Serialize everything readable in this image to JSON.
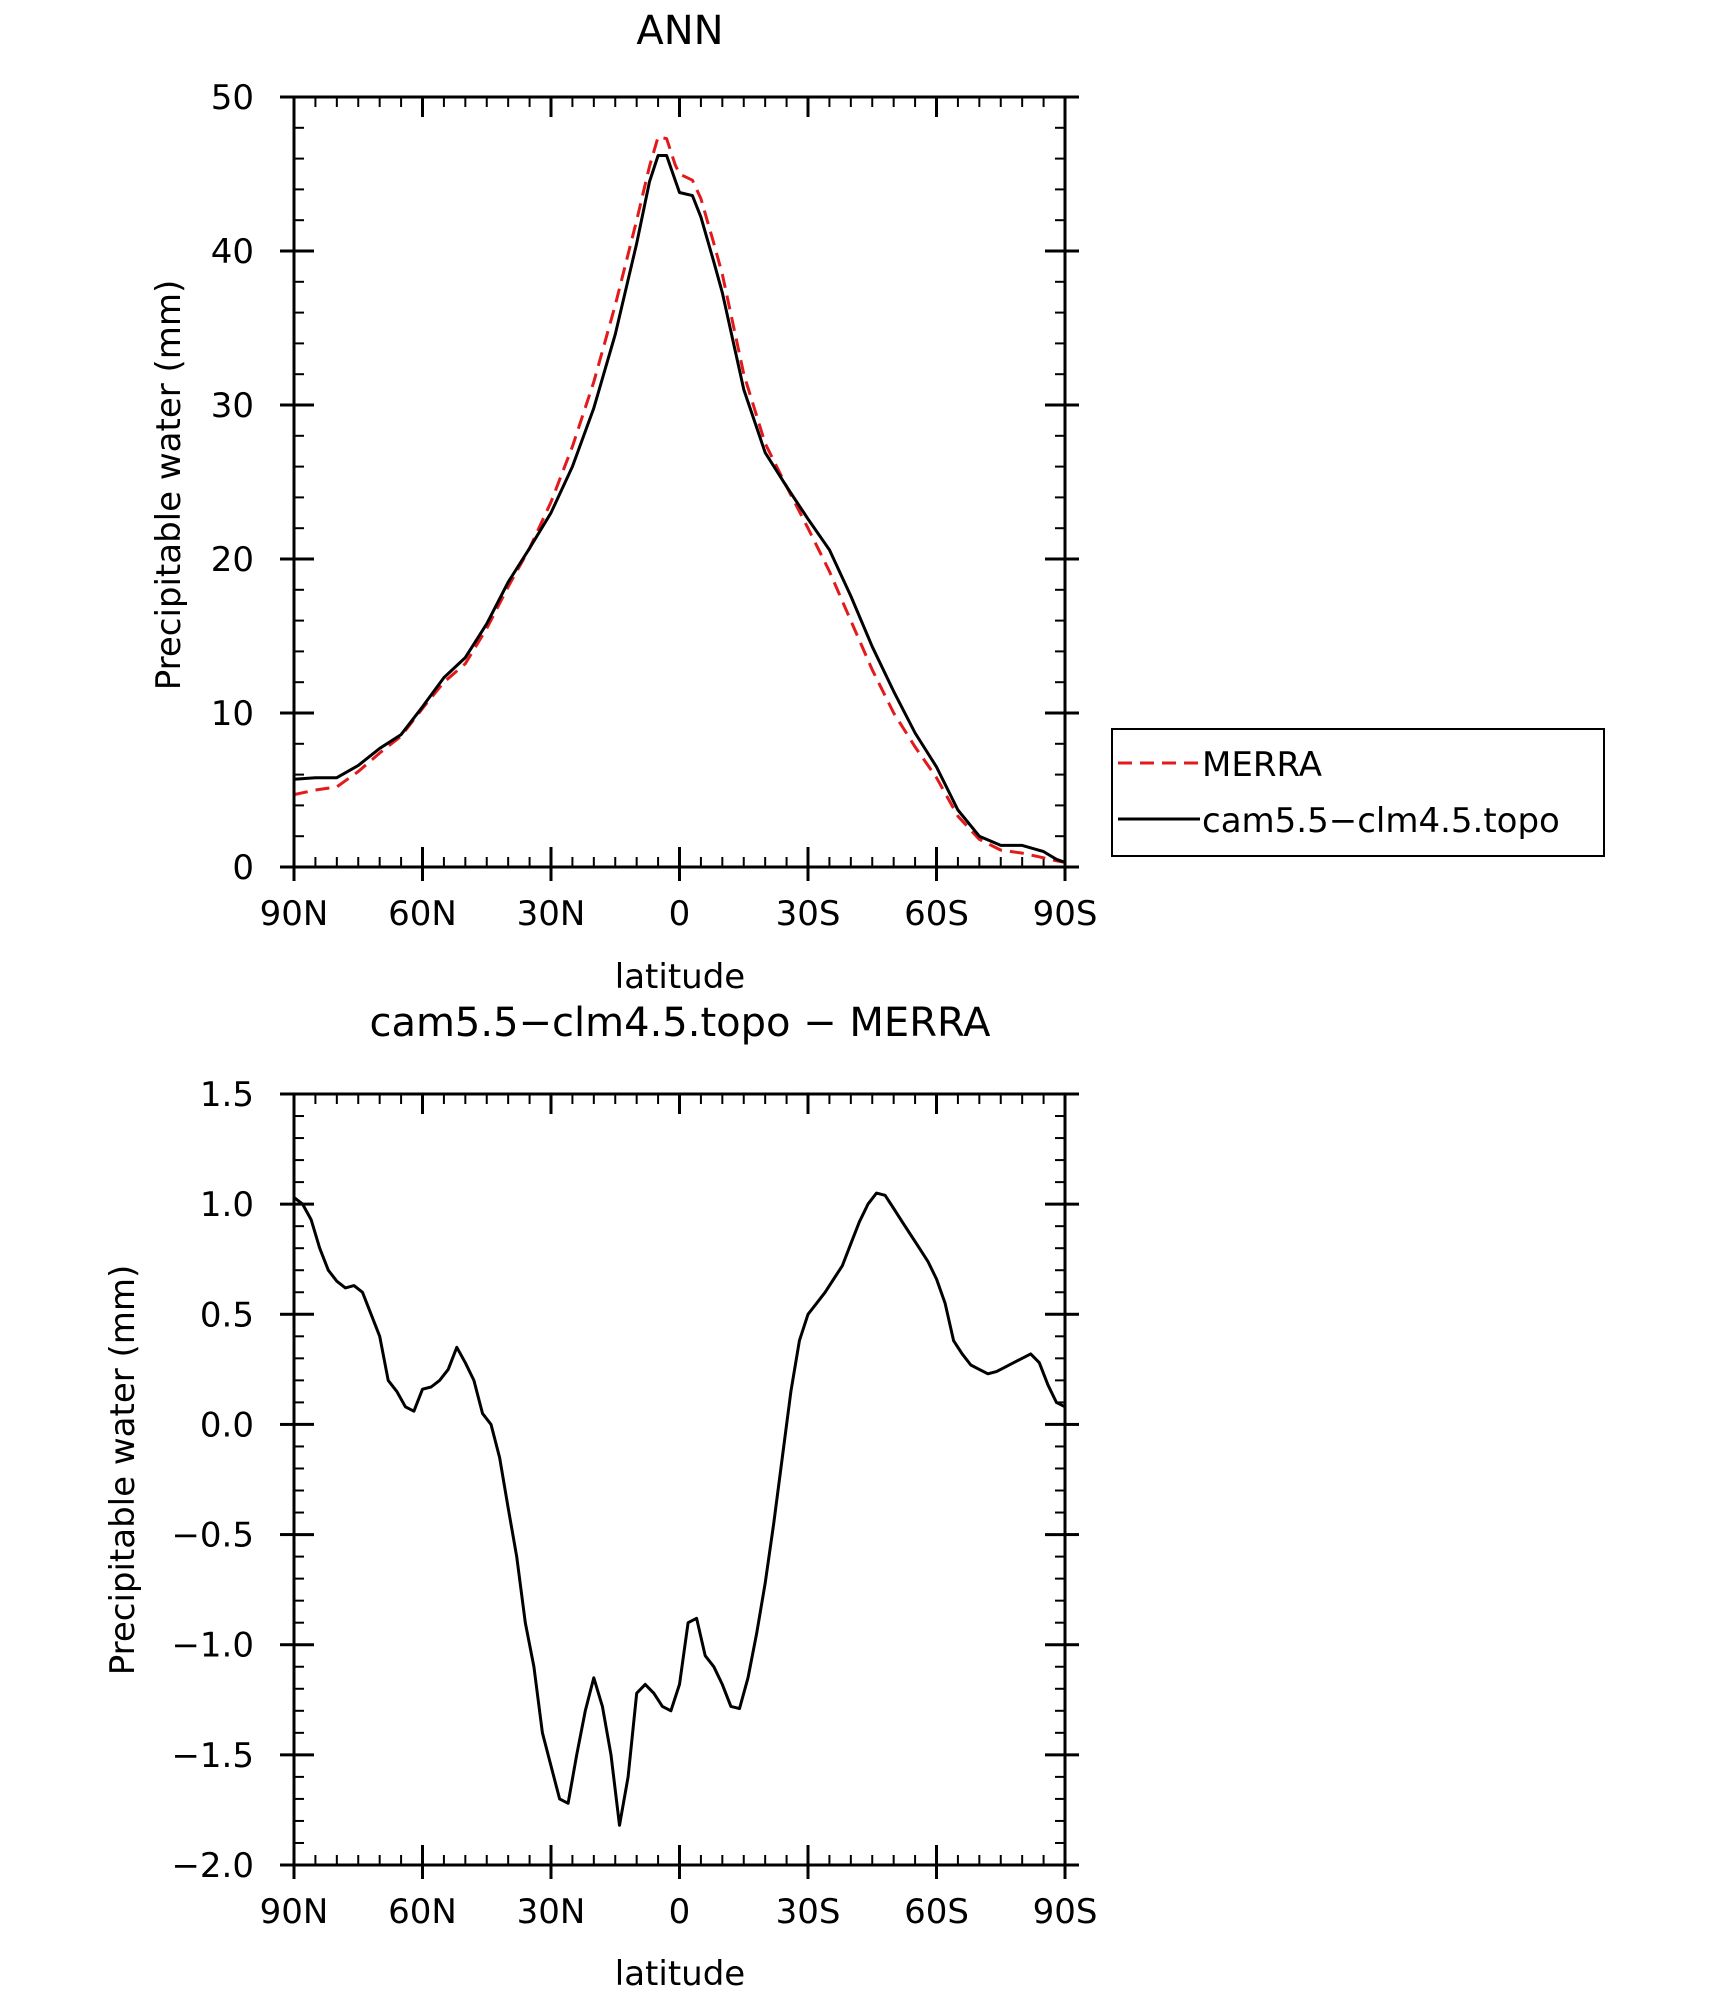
{
  "chart_data": [
    {
      "type": "line",
      "title": "ANN",
      "xlabel": "latitude",
      "ylabel": "Precipitable water (mm)",
      "xlim": [
        -90,
        90
      ],
      "ylim": [
        0,
        50
      ],
      "x_ticks": [
        -90,
        -60,
        -30,
        0,
        30,
        60,
        90
      ],
      "x_tick_labels": [
        "90N",
        "60N",
        "30N",
        "0",
        "30S",
        "60S",
        "90S"
      ],
      "y_ticks": [
        0,
        10,
        20,
        30,
        40,
        50
      ],
      "y_tick_labels": [
        "0",
        "10",
        "20",
        "30",
        "40",
        "50"
      ],
      "grid": false,
      "legend": {
        "placement": "right"
      },
      "series": [
        {
          "name": "MERRA",
          "color": "#e31a1c",
          "dash": "dashed",
          "x": [
            -90,
            -85,
            -80,
            -75,
            -70,
            -65,
            -60,
            -55,
            -50,
            -45,
            -40,
            -35,
            -30,
            -25,
            -20,
            -15,
            -10,
            -7,
            -5,
            -3,
            -1,
            0,
            3,
            5,
            8,
            10,
            15,
            20,
            25,
            30,
            35,
            40,
            45,
            50,
            55,
            60,
            65,
            70,
            75,
            80,
            85,
            88,
            90
          ],
          "y": [
            4.7,
            5.0,
            5.2,
            6.2,
            7.4,
            8.5,
            10.3,
            12.0,
            13.2,
            15.5,
            18.2,
            20.7,
            23.7,
            27.3,
            31.5,
            36.5,
            42.0,
            45.5,
            47.4,
            47.3,
            45.6,
            45.0,
            44.6,
            43.4,
            40.5,
            38.5,
            32.0,
            27.5,
            24.7,
            22.0,
            19.2,
            16.0,
            12.8,
            10.0,
            7.8,
            5.8,
            3.3,
            1.8,
            1.1,
            0.9,
            0.6,
            0.4,
            0.3
          ]
        },
        {
          "name": "cam5.5−clm4.5.topo",
          "color": "#000000",
          "dash": "solid",
          "x": [
            -90,
            -85,
            -80,
            -75,
            -70,
            -65,
            -60,
            -55,
            -50,
            -45,
            -40,
            -35,
            -30,
            -25,
            -20,
            -15,
            -10,
            -7,
            -5,
            -3,
            -1,
            0,
            3,
            5,
            8,
            10,
            15,
            20,
            25,
            30,
            35,
            40,
            45,
            50,
            55,
            60,
            65,
            70,
            75,
            80,
            85,
            88,
            90
          ],
          "y": [
            5.7,
            5.8,
            5.8,
            6.6,
            7.7,
            8.6,
            10.4,
            12.3,
            13.6,
            15.8,
            18.5,
            20.7,
            23.0,
            26.0,
            29.8,
            34.6,
            40.5,
            44.5,
            46.2,
            46.2,
            44.6,
            43.8,
            43.6,
            42.2,
            39.3,
            37.3,
            31.0,
            26.9,
            24.7,
            22.6,
            20.6,
            17.6,
            14.3,
            11.4,
            8.7,
            6.5,
            3.7,
            2.0,
            1.4,
            1.4,
            1.0,
            0.5,
            0.3
          ]
        }
      ]
    },
    {
      "type": "line",
      "title": "cam5.5−clm4.5.topo − MERRA",
      "xlabel": "latitude",
      "ylabel": "Precipitable water (mm)",
      "xlim": [
        -90,
        90
      ],
      "ylim": [
        -2.0,
        1.5
      ],
      "x_ticks": [
        -90,
        -60,
        -30,
        0,
        30,
        60,
        90
      ],
      "x_tick_labels": [
        "90N",
        "60N",
        "30N",
        "0",
        "30S",
        "60S",
        "90S"
      ],
      "y_ticks": [
        -2.0,
        -1.5,
        -1.0,
        -0.5,
        0.0,
        0.5,
        1.0,
        1.5
      ],
      "y_tick_labels": [
        "−2.0",
        "−1.5",
        "−1.0",
        "−0.5",
        "0.0",
        "0.5",
        "1.0",
        "1.5"
      ],
      "grid": false,
      "series": [
        {
          "color": "#000000",
          "dash": "solid",
          "x": [
            -90,
            -88,
            -86,
            -84,
            -82,
            -80,
            -78,
            -76,
            -74,
            -72,
            -70,
            -68,
            -66,
            -64,
            -62,
            -60,
            -58,
            -56,
            -54,
            -52,
            -50,
            -48,
            -46,
            -44,
            -42,
            -40,
            -38,
            -36,
            -34,
            -32,
            -30,
            -28,
            -26,
            -24,
            -22,
            -20,
            -18,
            -16,
            -14,
            -12,
            -10,
            -8,
            -6,
            -4,
            -2,
            0,
            2,
            4,
            6,
            8,
            10,
            12,
            14,
            16,
            18,
            20,
            22,
            24,
            26,
            28,
            30,
            32,
            34,
            36,
            38,
            40,
            42,
            44,
            46,
            48,
            50,
            52,
            54,
            56,
            58,
            60,
            62,
            64,
            66,
            68,
            70,
            72,
            74,
            76,
            78,
            80,
            82,
            84,
            86,
            88,
            90
          ],
          "y": [
            1.03,
            1.0,
            0.93,
            0.8,
            0.7,
            0.65,
            0.62,
            0.63,
            0.6,
            0.5,
            0.4,
            0.2,
            0.15,
            0.08,
            0.06,
            0.16,
            0.17,
            0.2,
            0.25,
            0.35,
            0.28,
            0.2,
            0.05,
            0.0,
            -0.15,
            -0.38,
            -0.6,
            -0.9,
            -1.1,
            -1.4,
            -1.55,
            -1.7,
            -1.72,
            -1.5,
            -1.3,
            -1.15,
            -1.28,
            -1.5,
            -1.82,
            -1.6,
            -1.22,
            -1.18,
            -1.22,
            -1.28,
            -1.3,
            -1.18,
            -0.9,
            -0.88,
            -1.05,
            -1.1,
            -1.18,
            -1.28,
            -1.29,
            -1.15,
            -0.95,
            -0.72,
            -0.45,
            -0.15,
            0.15,
            0.38,
            0.5,
            0.55,
            0.6,
            0.66,
            0.72,
            0.82,
            0.92,
            1.0,
            1.05,
            1.04,
            0.98,
            0.92,
            0.86,
            0.8,
            0.74,
            0.66,
            0.55,
            0.38,
            0.32,
            0.27,
            0.25,
            0.23,
            0.24,
            0.26,
            0.28,
            0.3,
            0.32,
            0.28,
            0.18,
            0.1,
            0.08
          ]
        }
      ]
    }
  ]
}
